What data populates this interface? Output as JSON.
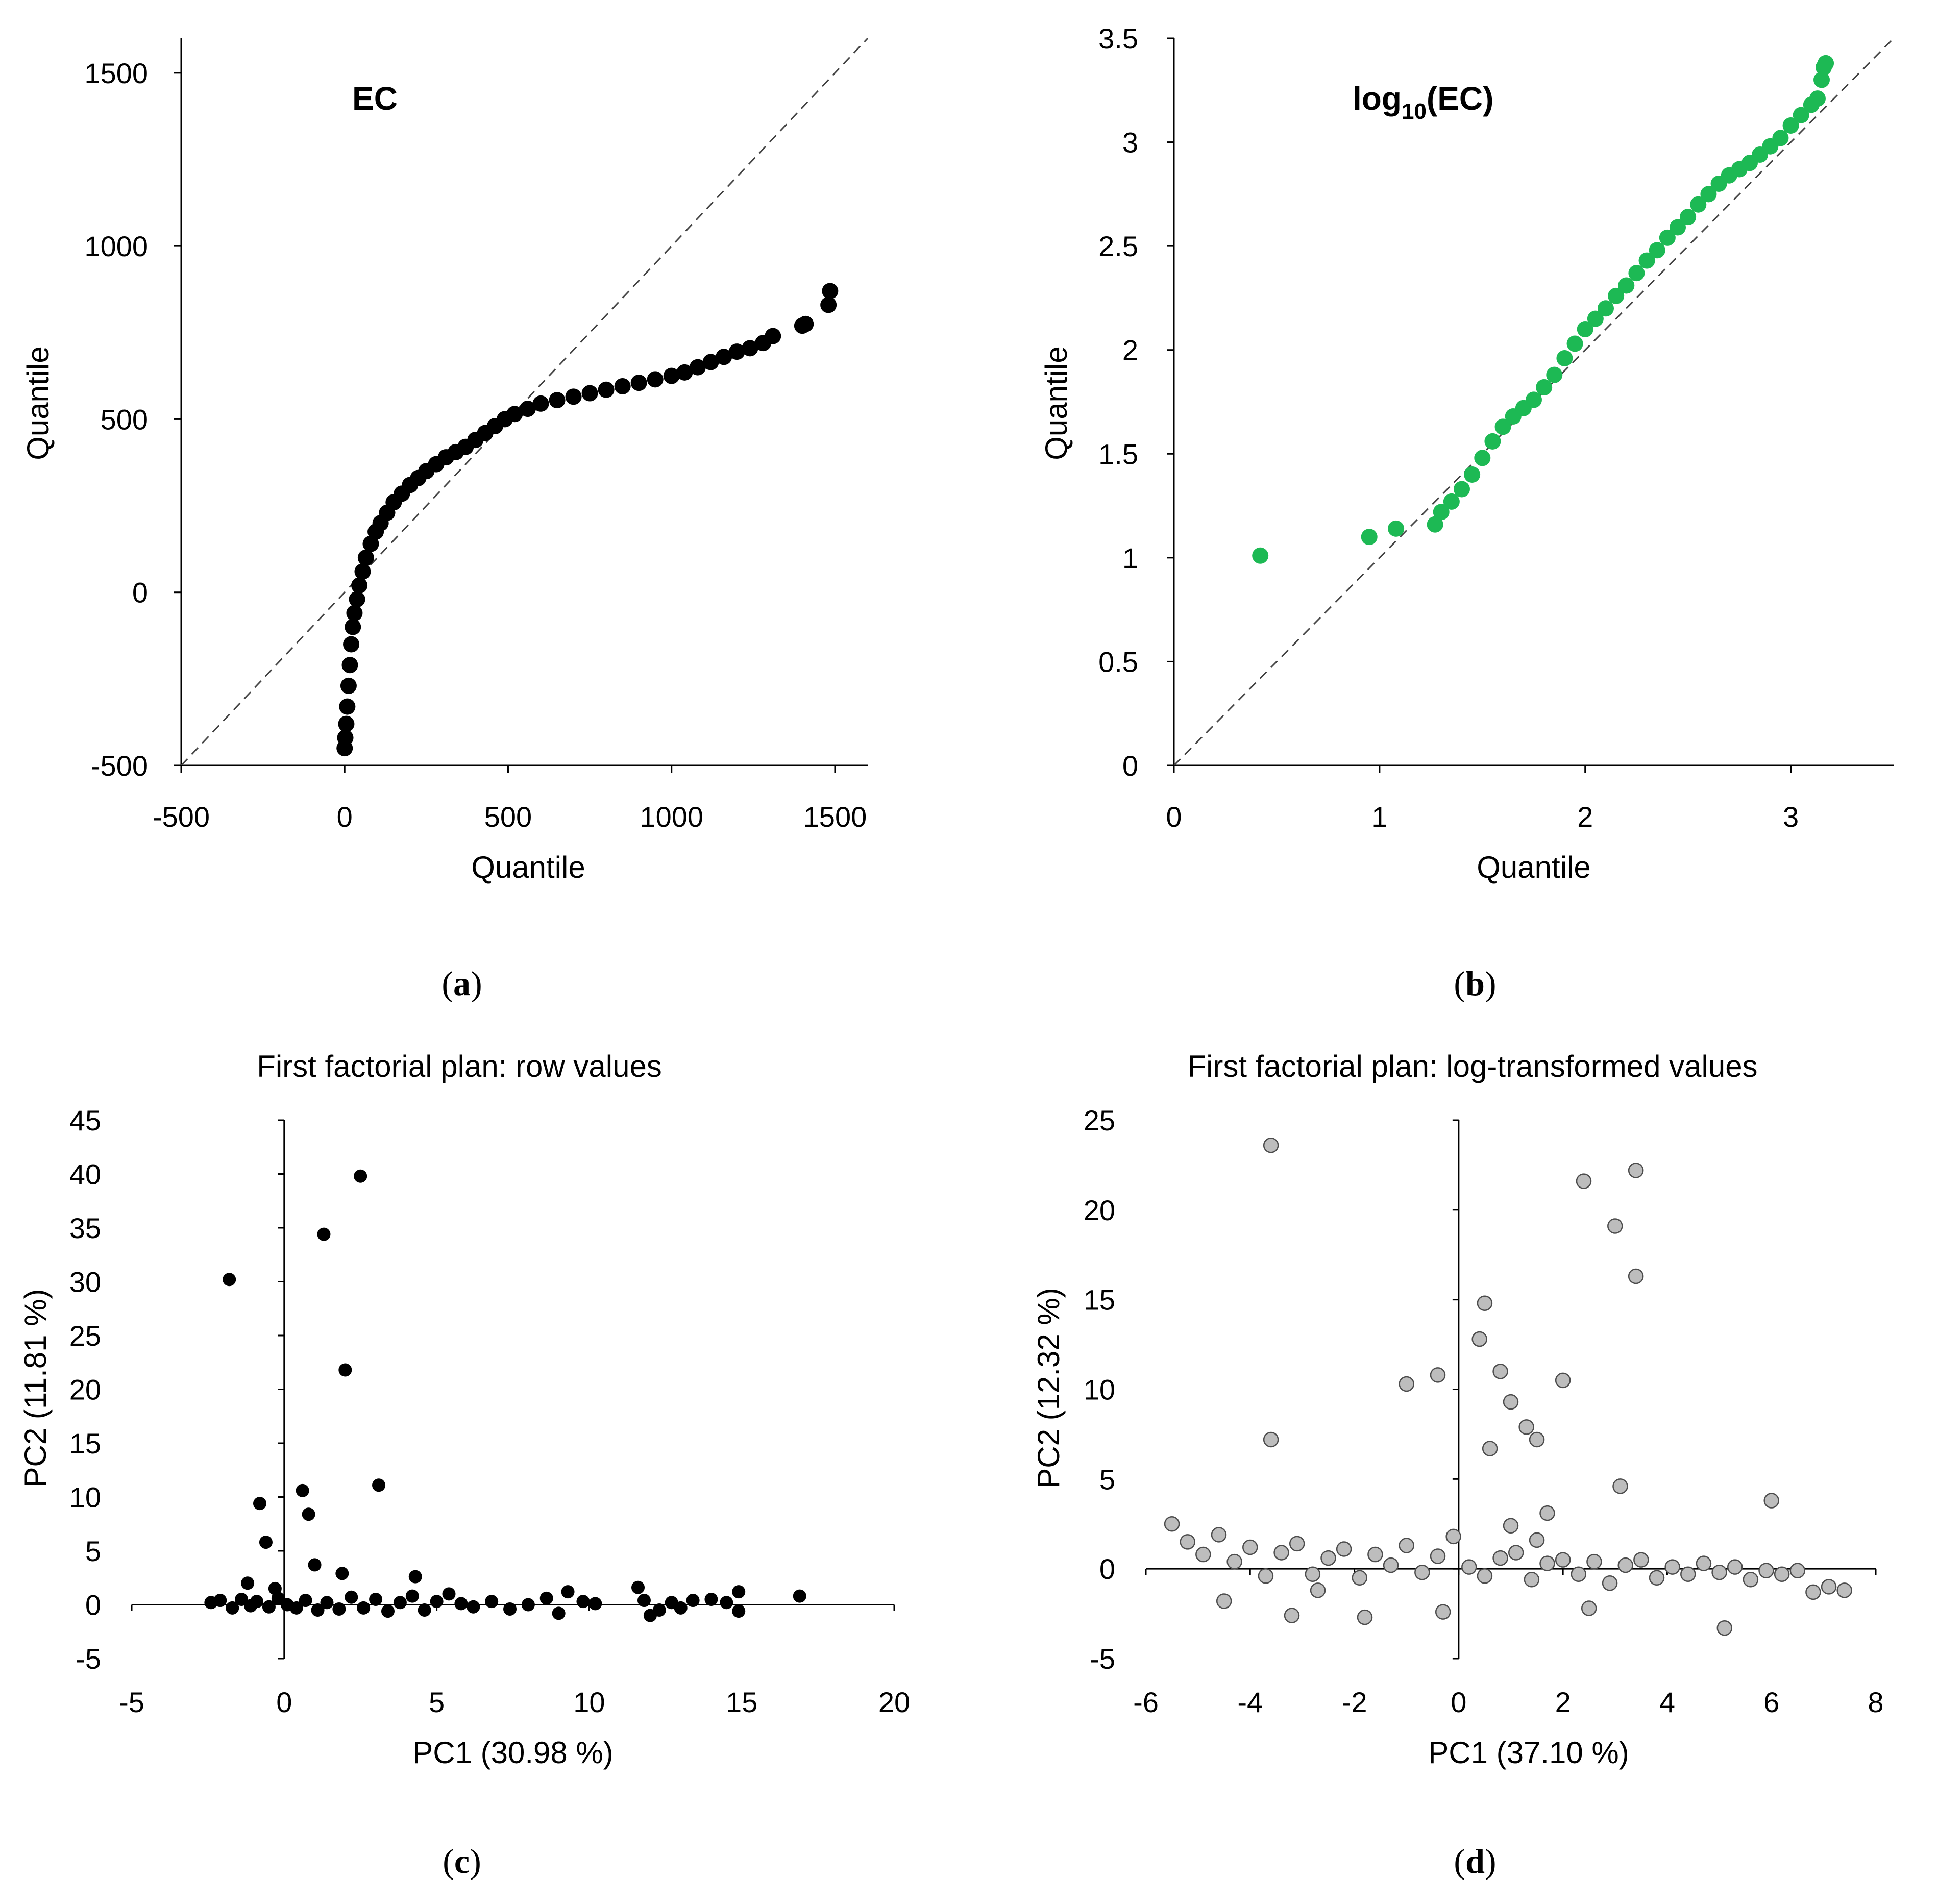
{
  "chart_data": [
    {
      "type": "scatter",
      "panel_label": "a",
      "inset_title": "EC",
      "xlabel": "Quantile",
      "ylabel": "Quantile",
      "xlim": [
        -500,
        1600
      ],
      "ylim": [
        -500,
        1600
      ],
      "xticks": [
        "-500",
        "0",
        "500",
        "1000",
        "1500"
      ],
      "yticks": [
        "-500",
        "0",
        "500",
        "1000",
        "1500"
      ],
      "reference_line": "y = x (dashed)",
      "marker_color": "#000000",
      "x": [
        0,
        2,
        5,
        8,
        12,
        16,
        20,
        25,
        30,
        38,
        45,
        55,
        65,
        80,
        95,
        110,
        130,
        150,
        175,
        200,
        225,
        250,
        280,
        310,
        340,
        370,
        400,
        430,
        460,
        490,
        520,
        560,
        600,
        650,
        700,
        750,
        800,
        850,
        900,
        950,
        1000,
        1040,
        1080,
        1120,
        1160,
        1200,
        1240,
        1280,
        1310,
        1400,
        1410,
        1480,
        1485
      ],
      "y": [
        -450,
        -420,
        -380,
        -330,
        -270,
        -210,
        -150,
        -100,
        -60,
        -20,
        20,
        60,
        100,
        140,
        175,
        200,
        230,
        260,
        285,
        310,
        330,
        350,
        370,
        390,
        405,
        420,
        440,
        460,
        480,
        500,
        515,
        530,
        545,
        555,
        565,
        575,
        585,
        595,
        605,
        615,
        625,
        635,
        650,
        665,
        680,
        695,
        705,
        720,
        740,
        770,
        775,
        830,
        870
      ]
    },
    {
      "type": "scatter",
      "panel_label": "b",
      "inset_title": "log10(EC)",
      "xlabel": "Quantile",
      "ylabel": "Quantile",
      "xlim": [
        0,
        3.5
      ],
      "ylim": [
        0,
        3.5
      ],
      "xticks": [
        "0",
        "1",
        "2",
        "3"
      ],
      "yticks": [
        "0",
        "0.5",
        "1",
        "1.5",
        "2",
        "2.5",
        "3",
        "3.5"
      ],
      "reference_line": "y = x (dashed)",
      "marker_color": "#1db954",
      "x": [
        0.42,
        0.95,
        1.08,
        1.27,
        1.3,
        1.35,
        1.4,
        1.45,
        1.5,
        1.55,
        1.6,
        1.65,
        1.7,
        1.75,
        1.8,
        1.85,
        1.9,
        1.95,
        2.0,
        2.05,
        2.1,
        2.15,
        2.2,
        2.25,
        2.3,
        2.35,
        2.4,
        2.45,
        2.5,
        2.55,
        2.6,
        2.65,
        2.7,
        2.75,
        2.8,
        2.85,
        2.9,
        2.95,
        3.0,
        3.05,
        3.1,
        3.13,
        3.15,
        3.16,
        3.17
      ],
      "y": [
        1.01,
        1.1,
        1.14,
        1.16,
        1.22,
        1.27,
        1.33,
        1.4,
        1.48,
        1.56,
        1.63,
        1.68,
        1.72,
        1.76,
        1.82,
        1.88,
        1.96,
        2.03,
        2.1,
        2.15,
        2.2,
        2.26,
        2.31,
        2.37,
        2.43,
        2.48,
        2.54,
        2.59,
        2.64,
        2.7,
        2.75,
        2.8,
        2.84,
        2.87,
        2.9,
        2.94,
        2.98,
        3.02,
        3.08,
        3.13,
        3.18,
        3.21,
        3.3,
        3.36,
        3.38
      ]
    },
    {
      "type": "scatter",
      "panel_label": "c",
      "title": "First factorial plan:  row values",
      "xlabel": "PC1 (30.98 %)",
      "ylabel": "PC2 (11.81 %)",
      "xlim": [
        -5,
        20
      ],
      "ylim": [
        -5,
        45
      ],
      "xticks": [
        "-5",
        "0",
        "5",
        "10",
        "15",
        "20"
      ],
      "yticks": [
        "-5",
        "0",
        "5",
        "10",
        "15",
        "20",
        "25",
        "30",
        "35",
        "40",
        "45"
      ],
      "marker_color": "#000000",
      "x": [
        2.5,
        1.3,
        -1.8,
        2.0,
        3.1,
        0.6,
        -0.8,
        0.8,
        -0.6,
        1.0,
        1.9,
        4.3,
        -1.2,
        -0.3,
        -2.4,
        -2.1,
        -1.7,
        -1.4,
        -1.1,
        -0.9,
        -0.5,
        -0.2,
        0.1,
        0.4,
        0.7,
        1.1,
        1.4,
        1.8,
        2.2,
        2.6,
        3.0,
        3.4,
        3.8,
        4.2,
        4.6,
        5.0,
        5.4,
        5.8,
        6.2,
        6.8,
        7.4,
        8.0,
        8.6,
        9.0,
        9.3,
        9.8,
        10.2,
        11.6,
        11.8,
        12.0,
        12.3,
        12.7,
        13.0,
        13.4,
        14.0,
        14.5,
        14.9,
        14.9,
        16.9
      ],
      "y": [
        39.8,
        34.4,
        30.2,
        21.8,
        11.1,
        10.6,
        9.4,
        8.4,
        5.8,
        3.7,
        2.9,
        2.6,
        2.0,
        1.5,
        0.2,
        0.4,
        -0.3,
        0.5,
        -0.1,
        0.3,
        -0.2,
        0.6,
        0.0,
        -0.3,
        0.4,
        -0.5,
        0.2,
        -0.4,
        0.7,
        -0.3,
        0.5,
        -0.6,
        0.2,
        0.8,
        -0.5,
        0.3,
        1.0,
        0.1,
        -0.2,
        0.3,
        -0.4,
        0.0,
        0.6,
        -0.8,
        1.2,
        0.3,
        0.1,
        1.6,
        0.4,
        -1.0,
        -0.5,
        0.2,
        -0.3,
        0.4,
        0.5,
        0.2,
        1.2,
        -0.6,
        0.8
      ]
    },
    {
      "type": "scatter",
      "panel_label": "d",
      "title": "First factorial plan:  log-transformed values",
      "xlabel": "PC1 (37.10 %)",
      "ylabel": "PC2 (12.32 %)",
      "xlim": [
        -6,
        8
      ],
      "ylim": [
        -5,
        25
      ],
      "xticks": [
        "-6",
        "-4",
        "-2",
        "0",
        "2",
        "4",
        "6",
        "8"
      ],
      "yticks": [
        "-5",
        "0",
        "5",
        "10",
        "15",
        "20",
        "25"
      ],
      "marker_color": "#bdbdbd",
      "x": [
        -3.6,
        3.4,
        2.4,
        3.0,
        3.4,
        0.5,
        0.4,
        -1.0,
        -0.4,
        0.8,
        1.0,
        2.0,
        -3.6,
        0.6,
        1.3,
        1.5,
        1.7,
        3.1,
        6.0,
        1.0,
        1.5,
        -5.5,
        -5.2,
        -4.9,
        -4.6,
        -4.3,
        -4.0,
        -3.7,
        -3.4,
        -3.1,
        -2.8,
        -2.5,
        -2.2,
        -1.9,
        -1.6,
        -1.3,
        -1.0,
        -0.7,
        -0.4,
        -0.1,
        0.2,
        0.5,
        0.8,
        1.1,
        1.4,
        1.7,
        2.0,
        2.3,
        2.6,
        2.9,
        3.2,
        3.5,
        3.8,
        4.1,
        4.4,
        4.7,
        5.0,
        5.3,
        5.6,
        5.9,
        6.2,
        6.5,
        6.8,
        7.1,
        7.4,
        5.1,
        -3.2,
        -1.8,
        -0.3,
        2.5,
        -4.5,
        -2.7
      ],
      "y": [
        23.6,
        22.2,
        21.6,
        19.1,
        16.3,
        14.8,
        12.8,
        10.3,
        10.8,
        11.0,
        9.3,
        10.5,
        7.2,
        6.7,
        7.9,
        7.2,
        3.1,
        4.6,
        3.8,
        2.4,
        1.6,
        2.5,
        1.5,
        0.8,
        1.9,
        0.4,
        1.2,
        -0.4,
        0.9,
        1.4,
        -0.3,
        0.6,
        1.1,
        -0.5,
        0.8,
        0.2,
        1.3,
        -0.2,
        0.7,
        1.8,
        0.1,
        -0.4,
        0.6,
        0.9,
        -0.6,
        0.3,
        0.5,
        -0.3,
        0.4,
        -0.8,
        0.2,
        0.5,
        -0.5,
        0.1,
        -0.3,
        0.3,
        -0.2,
        0.1,
        -0.6,
        -0.1,
        -0.3,
        -0.1,
        -1.3,
        -1.0,
        -1.2,
        -3.3,
        -2.6,
        -2.7,
        -2.4,
        -2.2,
        -1.8,
        -1.2
      ]
    }
  ]
}
